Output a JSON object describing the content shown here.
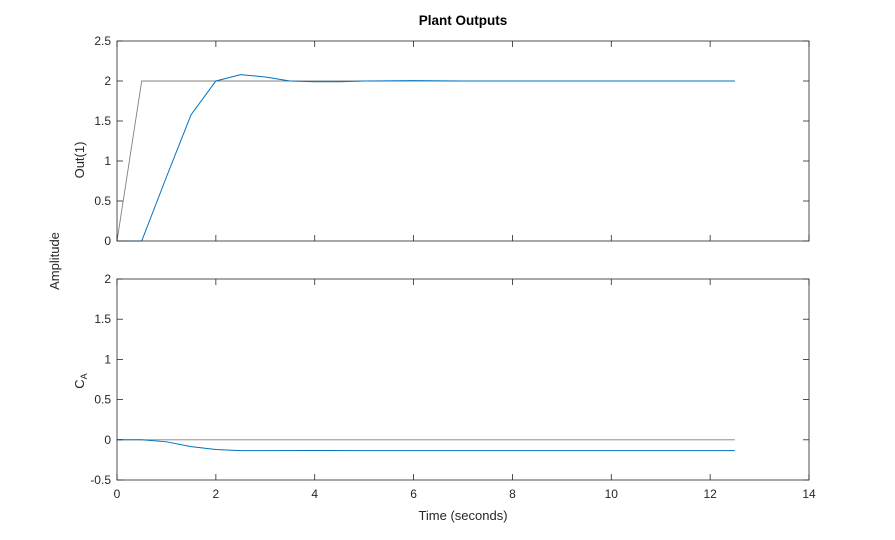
{
  "chart_data": {
    "type": "line",
    "title": "Plant Outputs",
    "xlabel": "Time (seconds)",
    "shared_ylabel": "Amplitude",
    "xlim": [
      0,
      14
    ],
    "xticks": [
      "0",
      "2",
      "4",
      "6",
      "8",
      "10",
      "12",
      "14"
    ],
    "grid": false,
    "colors": {
      "reference": "#808080",
      "output": "#0072BD"
    },
    "subplots": [
      {
        "ylabel": "Out(1)",
        "ylim": [
          0,
          2.5
        ],
        "yticks": [
          "0",
          "0.5",
          "1",
          "1.5",
          "2",
          "2.5"
        ],
        "series": [
          {
            "role": "reference",
            "x": [
              0,
              0.5,
              12.5
            ],
            "y": [
              0,
              2.0,
              2.0
            ]
          },
          {
            "role": "output",
            "x": [
              0,
              0.5,
              1.0,
              1.5,
              2.0,
              2.5,
              3.0,
              3.5,
              4.0,
              4.5,
              5.0,
              6.0,
              7.0,
              8.0,
              10.0,
              12.5
            ],
            "y": [
              0,
              0,
              0.8,
              1.58,
              2.0,
              2.08,
              2.05,
              2.0,
              1.99,
              1.99,
              2.0,
              2.005,
              2.0,
              2.0,
              2.0,
              2.0
            ]
          }
        ]
      },
      {
        "ylabel_main": "C",
        "ylabel_sub": "A",
        "ylim": [
          -0.5,
          2
        ],
        "yticks": [
          "-0.5",
          "0",
          "0.5",
          "1",
          "1.5",
          "2"
        ],
        "series": [
          {
            "role": "reference",
            "x": [
              0,
              12.5
            ],
            "y": [
              0,
              0
            ]
          },
          {
            "role": "output",
            "x": [
              0,
              0.5,
              1.0,
              1.5,
              2.0,
              2.5,
              3.0,
              4.0,
              5.0,
              6.0,
              8.0,
              10.0,
              12.5
            ],
            "y": [
              0,
              0,
              -0.025,
              -0.085,
              -0.12,
              -0.135,
              -0.135,
              -0.133,
              -0.135,
              -0.135,
              -0.135,
              -0.135,
              -0.135
            ]
          }
        ]
      }
    ]
  }
}
